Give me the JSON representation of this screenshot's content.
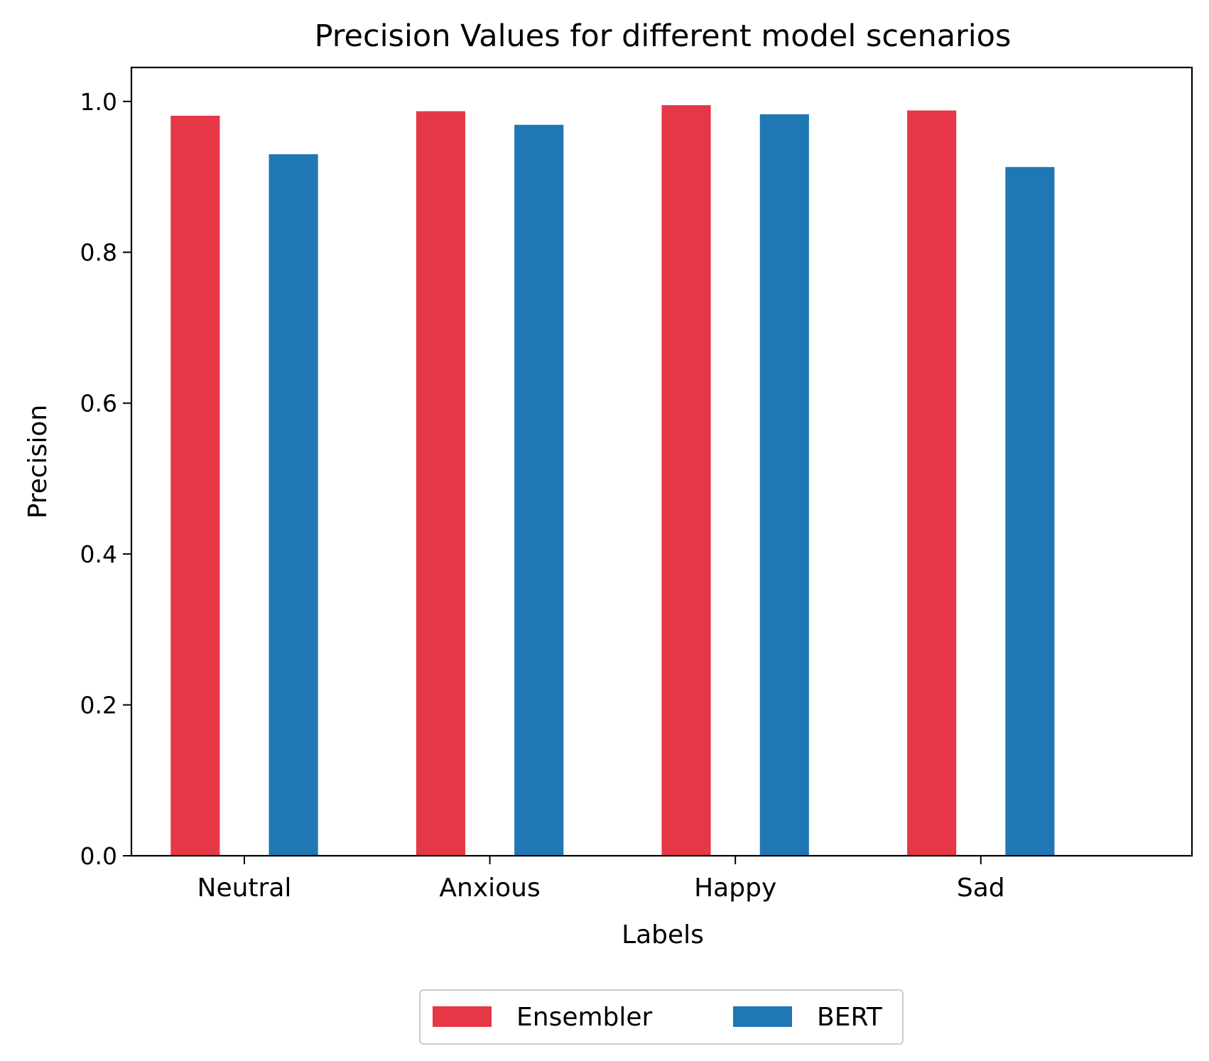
{
  "chart_data": {
    "type": "bar",
    "title": "Precision Values for different model scenarios",
    "xlabel": "Labels",
    "ylabel": "Precision",
    "categories": [
      "Neutral",
      "Anxious",
      "Happy",
      "Sad"
    ],
    "series": [
      {
        "name": "Ensembler",
        "color": "#e63746",
        "values": [
          0.981,
          0.987,
          0.995,
          0.988
        ]
      },
      {
        "name": "BERT",
        "color": "#1f77b4",
        "values": [
          0.93,
          0.969,
          0.983,
          0.913
        ]
      }
    ],
    "ylim": [
      0,
      1.045
    ],
    "yticks": [
      "0.0",
      "0.2",
      "0.4",
      "0.6",
      "0.8",
      "1.0"
    ],
    "grid": false,
    "legend_position": "bottom-center"
  }
}
